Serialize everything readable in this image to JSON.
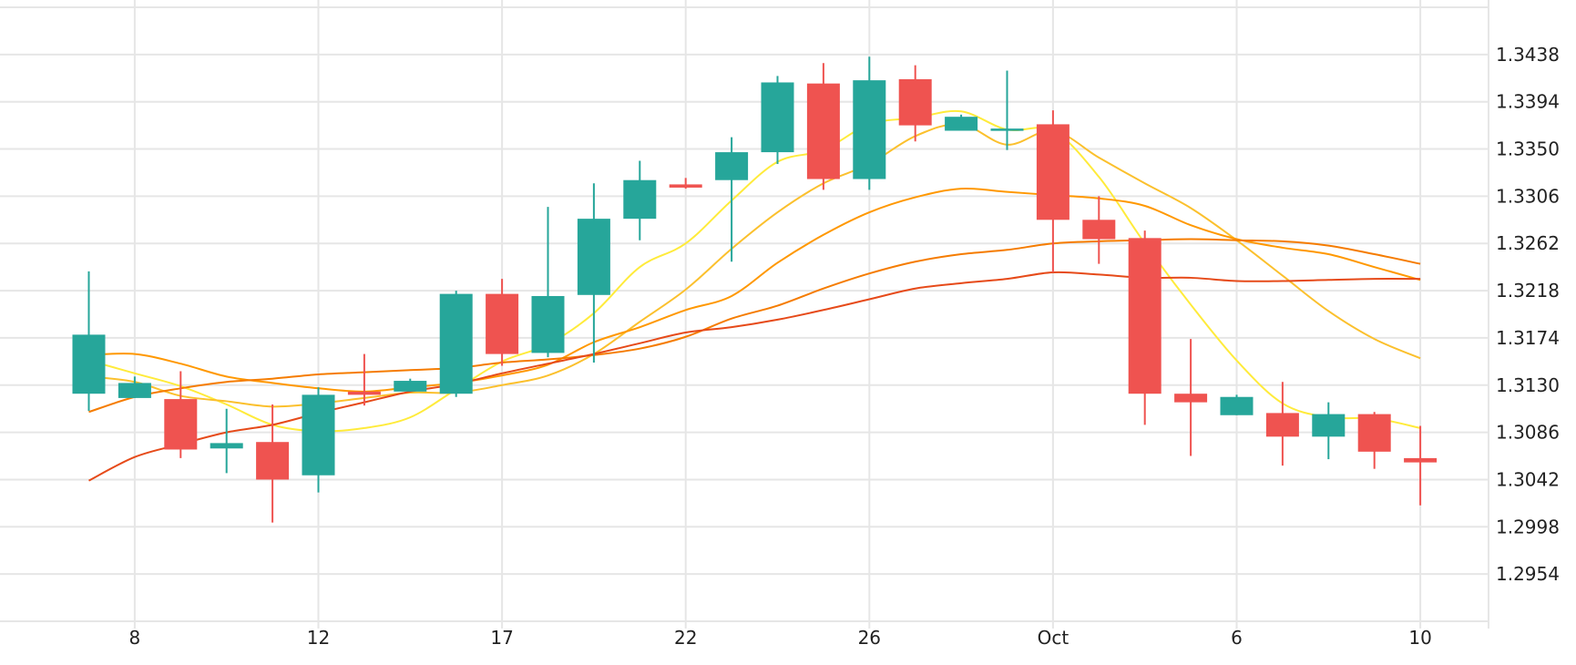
{
  "chart_data": {
    "type": "candlestick",
    "title": "",
    "xlabel": "",
    "ylabel": "",
    "ylim": [
      1.291,
      1.3482
    ],
    "grid": true,
    "up_color": "#26a69a",
    "down_color": "#ef5350",
    "y_ticks": [
      "1.3438",
      "1.3394",
      "1.3350",
      "1.3306",
      "1.3262",
      "1.3218",
      "1.3174",
      "1.3130",
      "1.3086",
      "1.3042",
      "1.2998",
      "1.2954"
    ],
    "x_ticks": [
      {
        "label": "8",
        "index": 1
      },
      {
        "label": "12",
        "index": 5
      },
      {
        "label": "17",
        "index": 9
      },
      {
        "label": "22",
        "index": 13
      },
      {
        "label": "26",
        "index": 17
      },
      {
        "label": "Oct",
        "index": 21
      },
      {
        "label": "6",
        "index": 25
      },
      {
        "label": "10",
        "index": 29
      }
    ],
    "candles": [
      {
        "open": 1.3122,
        "high": 1.3236,
        "low": 1.3106,
        "close": 1.3177
      },
      {
        "open": 1.3118,
        "high": 1.3138,
        "low": 1.3118,
        "close": 1.3132
      },
      {
        "open": 1.3117,
        "high": 1.3143,
        "low": 1.3062,
        "close": 1.307
      },
      {
        "open": 1.3071,
        "high": 1.3108,
        "low": 1.3048,
        "close": 1.3076
      },
      {
        "open": 1.3077,
        "high": 1.3112,
        "low": 1.3002,
        "close": 1.3042
      },
      {
        "open": 1.3046,
        "high": 1.3128,
        "low": 1.303,
        "close": 1.3121
      },
      {
        "open": 1.3124,
        "high": 1.3159,
        "low": 1.3111,
        "close": 1.3121
      },
      {
        "open": 1.3124,
        "high": 1.3136,
        "low": 1.3124,
        "close": 1.3134
      },
      {
        "open": 1.3122,
        "high": 1.3218,
        "low": 1.3119,
        "close": 1.3215
      },
      {
        "open": 1.3215,
        "high": 1.3229,
        "low": 1.3148,
        "close": 1.3159
      },
      {
        "open": 1.316,
        "high": 1.3296,
        "low": 1.3156,
        "close": 1.3213
      },
      {
        "open": 1.3214,
        "high": 1.3318,
        "low": 1.3151,
        "close": 1.3285
      },
      {
        "open": 1.3285,
        "high": 1.3339,
        "low": 1.3265,
        "close": 1.3321
      },
      {
        "open": 1.3317,
        "high": 1.3323,
        "low": 1.3313,
        "close": 1.3314
      },
      {
        "open": 1.3321,
        "high": 1.3361,
        "low": 1.3245,
        "close": 1.3347
      },
      {
        "open": 1.3347,
        "high": 1.3418,
        "low": 1.3336,
        "close": 1.3412
      },
      {
        "open": 1.3411,
        "high": 1.343,
        "low": 1.3312,
        "close": 1.3322
      },
      {
        "open": 1.3322,
        "high": 1.3436,
        "low": 1.3312,
        "close": 1.3414
      },
      {
        "open": 1.3415,
        "high": 1.3428,
        "low": 1.3357,
        "close": 1.3372
      },
      {
        "open": 1.3367,
        "high": 1.3382,
        "low": 1.3367,
        "close": 1.338
      },
      {
        "open": 1.3368,
        "high": 1.3423,
        "low": 1.3349,
        "close": 1.3369
      },
      {
        "open": 1.3373,
        "high": 1.3386,
        "low": 1.3235,
        "close": 1.3284
      },
      {
        "open": 1.3284,
        "high": 1.3306,
        "low": 1.3243,
        "close": 1.3266
      },
      {
        "open": 1.3267,
        "high": 1.3274,
        "low": 1.3093,
        "close": 1.3122
      },
      {
        "open": 1.3122,
        "high": 1.3173,
        "low": 1.3064,
        "close": 1.3114
      },
      {
        "open": 1.3102,
        "high": 1.3121,
        "low": 1.3102,
        "close": 1.3119
      },
      {
        "open": 1.3104,
        "high": 1.3133,
        "low": 1.3055,
        "close": 1.3082
      },
      {
        "open": 1.3082,
        "high": 1.3114,
        "low": 1.3061,
        "close": 1.3103
      },
      {
        "open": 1.3103,
        "high": 1.3105,
        "low": 1.3052,
        "close": 1.3068
      },
      {
        "open": 1.3062,
        "high": 1.3092,
        "low": 1.3018,
        "close": 1.3058
      }
    ],
    "moving_averages": [
      {
        "color": "#ffeb3b",
        "values": [
          1.3153,
          1.3141,
          1.3129,
          1.3112,
          1.3093,
          1.3087,
          1.309,
          1.31,
          1.3126,
          1.3152,
          1.3168,
          1.3197,
          1.324,
          1.3262,
          1.3302,
          1.3338,
          1.3349,
          1.3373,
          1.3379,
          1.3385,
          1.3368,
          1.3367,
          1.3324,
          1.3262,
          1.3205,
          1.3153,
          1.3113,
          1.31,
          1.3099,
          1.309
        ]
      },
      {
        "color": "#fbc02d",
        "values": [
          1.3138,
          1.3133,
          1.312,
          1.3115,
          1.311,
          1.3113,
          1.3118,
          1.3123,
          1.3123,
          1.313,
          1.3139,
          1.3159,
          1.3189,
          1.3219,
          1.3257,
          1.3291,
          1.3318,
          1.3336,
          1.3362,
          1.3373,
          1.3354,
          1.3367,
          1.3342,
          1.3318,
          1.3295,
          1.3265,
          1.3232,
          1.3199,
          1.3173,
          1.3155
        ]
      },
      {
        "color": "#ff9800",
        "values": [
          1.3158,
          1.3159,
          1.315,
          1.3138,
          1.3132,
          1.3127,
          1.3124,
          1.3128,
          1.3132,
          1.3139,
          1.3149,
          1.317,
          1.3184,
          1.32,
          1.3213,
          1.3244,
          1.327,
          1.3291,
          1.3305,
          1.3313,
          1.331,
          1.3307,
          1.3304,
          1.3297,
          1.3279,
          1.3266,
          1.3258,
          1.3252,
          1.324,
          1.3228
        ]
      },
      {
        "color": "#f57c00",
        "values": [
          1.3105,
          1.3119,
          1.3127,
          1.3133,
          1.3136,
          1.314,
          1.3142,
          1.3144,
          1.3146,
          1.3151,
          1.3154,
          1.3158,
          1.3164,
          1.3175,
          1.3192,
          1.3204,
          1.322,
          1.3234,
          1.3245,
          1.3252,
          1.3256,
          1.3262,
          1.3264,
          1.3265,
          1.3266,
          1.3265,
          1.3264,
          1.326,
          1.3252,
          1.3243
        ]
      },
      {
        "color": "#e64a19",
        "values": [
          1.3041,
          1.3063,
          1.3075,
          1.3086,
          1.3093,
          1.3104,
          1.3114,
          1.3124,
          1.3131,
          1.3141,
          1.315,
          1.3159,
          1.3169,
          1.3179,
          1.3184,
          1.3191,
          1.32,
          1.321,
          1.322,
          1.3225,
          1.3229,
          1.3235,
          1.3233,
          1.323,
          1.323,
          1.3227,
          1.3227,
          1.3228,
          1.3229,
          1.3229
        ]
      }
    ]
  }
}
